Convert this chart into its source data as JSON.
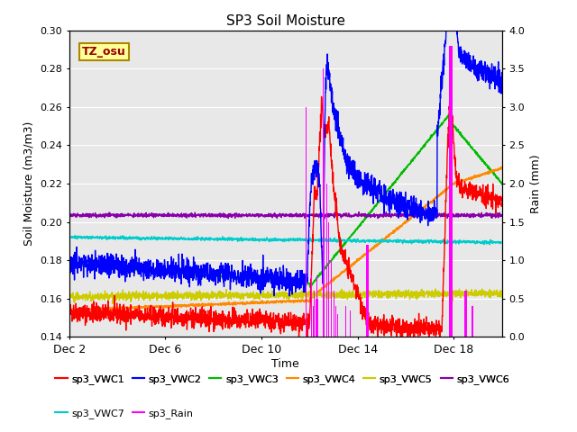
{
  "title": "SP3 Soil Moisture",
  "xlabel": "Time",
  "ylabel_left": "Soil Moisture (m3/m3)",
  "ylabel_right": "Rain (mm)",
  "ylim_left": [
    0.14,
    0.3
  ],
  "ylim_right": [
    0.0,
    4.0
  ],
  "xlim": [
    2,
    20
  ],
  "bg_color": "#e8e8e8",
  "xtick_labels": [
    "Dec 2",
    "Dec 6",
    "Dec 10",
    "Dec 14",
    "Dec 18"
  ],
  "xtick_positions": [
    2,
    6,
    10,
    14,
    18
  ],
  "colors": {
    "vwc1": "#ff0000",
    "vwc2": "#0000ff",
    "vwc3": "#00bb00",
    "vwc4": "#ff8800",
    "vwc5": "#cccc00",
    "vwc6": "#8800aa",
    "vwc7": "#00cccc",
    "rain": "#ff00ff"
  },
  "tz_label": "TZ_osu",
  "tz_color": "#990000",
  "tz_bg": "#ffff99",
  "tz_border": "#aa8800",
  "legend_row1": [
    "sp3_VWC1",
    "sp3_VWC2",
    "sp3_VWC3",
    "sp3_VWC4",
    "sp3_VWC5",
    "sp3_VWC6"
  ],
  "legend_row2": [
    "sp3_VWC7",
    "sp3_Rain"
  ],
  "legend_colors_row1": [
    "#ff0000",
    "#0000ff",
    "#00bb00",
    "#ff8800",
    "#cccc00",
    "#8800aa"
  ],
  "legend_colors_row2": [
    "#00cccc",
    "#ff00ff"
  ]
}
